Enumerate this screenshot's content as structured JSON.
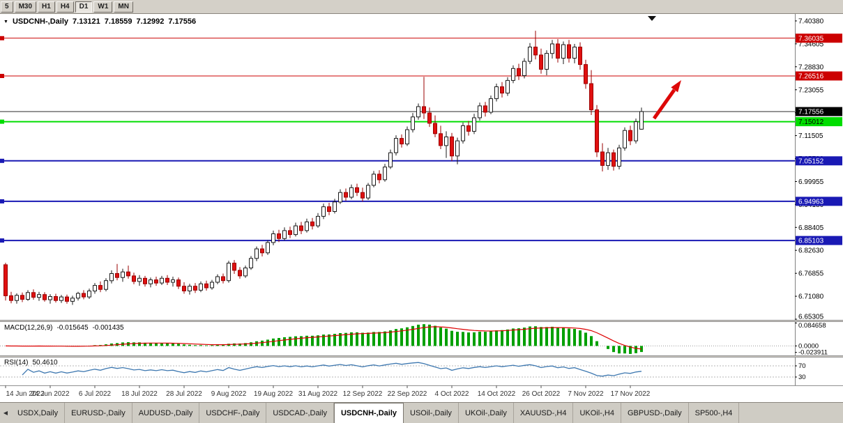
{
  "toolbar": {
    "timeframes": [
      {
        "label": "5",
        "active": false
      },
      {
        "label": "M30",
        "active": false
      },
      {
        "label": "H1",
        "active": false
      },
      {
        "label": "H4",
        "active": false
      },
      {
        "label": "D1",
        "active": true
      },
      {
        "label": "W1",
        "active": false
      },
      {
        "label": "MN",
        "active": false
      }
    ]
  },
  "chart": {
    "title": {
      "dropdown_icon": "▼",
      "symbol": "USDCNH-,Daily",
      "open": "7.13121",
      "high": "7.18559",
      "low": "7.12992",
      "close": "7.17556"
    },
    "levels": [
      {
        "price": 7.36035,
        "label": "7.36035",
        "color": "#cc0000",
        "text": "#ffffff",
        "width": 1
      },
      {
        "price": 7.26516,
        "label": "7.26516",
        "color": "#cc0000",
        "text": "#ffffff",
        "width": 1
      },
      {
        "price": 7.15012,
        "label": "7.15012",
        "color": "#00dd00",
        "text": "#000000",
        "width": 2
      },
      {
        "price": 7.05152,
        "label": "7.05152",
        "color": "#1919b4",
        "text": "#ffffff",
        "width": 2
      },
      {
        "price": 6.94963,
        "label": "6.94963",
        "color": "#1919b4",
        "text": "#ffffff",
        "width": 2
      },
      {
        "price": 6.85103,
        "label": "6.85103",
        "color": "#1919b4",
        "text": "#ffffff",
        "width": 2
      }
    ],
    "current_price": {
      "price": 7.17556,
      "label": "7.17556",
      "color": "#000000",
      "text": "#ffffff"
    },
    "arrow_color": "#dd0808",
    "bull_fill": "#ffffff",
    "bull_stroke": "#1a1a1a",
    "bear_fill": "#e01010",
    "bear_stroke": "#9a0000"
  },
  "chart_data": {
    "type": "candlestick",
    "title": "USDCNH-,Daily",
    "symbol": "USDCNH-",
    "timeframe": "Daily",
    "y_ticks": [
      "7.40380",
      "7.34605",
      "7.28830",
      "7.23055",
      "7.17280",
      "7.11505",
      "7.05730",
      "6.99955",
      "6.94180",
      "6.88405",
      "6.82630",
      "6.76855",
      "6.71080",
      "6.65305"
    ],
    "x_label_every": 8,
    "x_labels": [
      "14 Jun 2022",
      "24 Jun 2022",
      "6 Jul 2022",
      "18 Jul 2022",
      "28 Jul 2022",
      "9 Aug 2022",
      "19 Aug 2022",
      "31 Aug 2022",
      "12 Sep 2022",
      "22 Sep 2022",
      "4 Oct 2022",
      "14 Oct 2022",
      "26 Oct 2022",
      "7 Nov 2022",
      "17 Nov 2022"
    ],
    "ohlc": [
      [
        6.79,
        6.795,
        6.7,
        6.712
      ],
      [
        6.712,
        6.722,
        6.693,
        6.7
      ],
      [
        6.7,
        6.718,
        6.692,
        6.713
      ],
      [
        6.713,
        6.72,
        6.696,
        6.703
      ],
      [
        6.703,
        6.726,
        6.699,
        6.72
      ],
      [
        6.72,
        6.728,
        6.702,
        6.708
      ],
      [
        6.708,
        6.722,
        6.699,
        6.715
      ],
      [
        6.715,
        6.721,
        6.697,
        6.702
      ],
      [
        6.702,
        6.716,
        6.692,
        6.71
      ],
      [
        6.71,
        6.717,
        6.695,
        6.7
      ],
      [
        6.7,
        6.714,
        6.694,
        6.709
      ],
      [
        6.709,
        6.715,
        6.692,
        6.698
      ],
      [
        6.698,
        6.712,
        6.689,
        6.706
      ],
      [
        6.706,
        6.722,
        6.7,
        6.718
      ],
      [
        6.718,
        6.726,
        6.703,
        6.709
      ],
      [
        6.709,
        6.73,
        6.704,
        6.724
      ],
      [
        6.724,
        6.744,
        6.717,
        6.738
      ],
      [
        6.738,
        6.748,
        6.721,
        6.728
      ],
      [
        6.728,
        6.756,
        6.723,
        6.75
      ],
      [
        6.75,
        6.776,
        6.743,
        6.768
      ],
      [
        6.768,
        6.792,
        6.751,
        6.758
      ],
      [
        6.758,
        6.78,
        6.747,
        6.772
      ],
      [
        6.772,
        6.788,
        6.755,
        6.762
      ],
      [
        6.762,
        6.77,
        6.741,
        6.748
      ],
      [
        6.748,
        6.764,
        6.737,
        6.756
      ],
      [
        6.756,
        6.762,
        6.735,
        6.742
      ],
      [
        6.742,
        6.758,
        6.733,
        6.752
      ],
      [
        6.752,
        6.76,
        6.737,
        6.744
      ],
      [
        6.744,
        6.762,
        6.739,
        6.756
      ],
      [
        6.756,
        6.764,
        6.739,
        6.746
      ],
      [
        6.746,
        6.76,
        6.735,
        6.752
      ],
      [
        6.752,
        6.758,
        6.729,
        6.736
      ],
      [
        6.736,
        6.746,
        6.717,
        6.724
      ],
      [
        6.724,
        6.742,
        6.715,
        6.736
      ],
      [
        6.736,
        6.744,
        6.719,
        6.726
      ],
      [
        6.726,
        6.748,
        6.721,
        6.742
      ],
      [
        6.742,
        6.75,
        6.725,
        6.732
      ],
      [
        6.732,
        6.752,
        6.727,
        6.746
      ],
      [
        6.746,
        6.766,
        6.741,
        6.76
      ],
      [
        6.76,
        6.768,
        6.743,
        6.75
      ],
      [
        6.75,
        6.8,
        6.745,
        6.794
      ],
      [
        6.794,
        6.802,
        6.767,
        6.776
      ],
      [
        6.776,
        6.784,
        6.755,
        6.762
      ],
      [
        6.762,
        6.788,
        6.757,
        6.782
      ],
      [
        6.782,
        6.812,
        6.777,
        6.806
      ],
      [
        6.806,
        6.836,
        6.799,
        6.83
      ],
      [
        6.83,
        6.84,
        6.811,
        6.82
      ],
      [
        6.82,
        6.852,
        6.815,
        6.846
      ],
      [
        6.846,
        6.876,
        6.839,
        6.868
      ],
      [
        6.868,
        6.878,
        6.847,
        6.856
      ],
      [
        6.856,
        6.884,
        6.851,
        6.876
      ],
      [
        6.876,
        6.886,
        6.857,
        6.866
      ],
      [
        6.866,
        6.896,
        6.861,
        6.888
      ],
      [
        6.888,
        6.898,
        6.867,
        6.876
      ],
      [
        6.876,
        6.906,
        6.871,
        6.898
      ],
      [
        6.898,
        6.908,
        6.879,
        6.888
      ],
      [
        6.888,
        6.92,
        6.883,
        6.912
      ],
      [
        6.912,
        6.944,
        6.905,
        6.936
      ],
      [
        6.936,
        6.946,
        6.915,
        6.924
      ],
      [
        6.924,
        6.956,
        6.919,
        6.948
      ],
      [
        6.948,
        6.98,
        6.943,
        6.972
      ],
      [
        6.972,
        6.982,
        6.951,
        6.96
      ],
      [
        6.96,
        6.992,
        6.955,
        6.984
      ],
      [
        6.984,
        6.994,
        6.963,
        6.972
      ],
      [
        6.972,
        6.984,
        6.949,
        6.958
      ],
      [
        6.958,
        6.996,
        6.953,
        6.99
      ],
      [
        6.99,
        7.026,
        6.985,
        7.018
      ],
      [
        7.018,
        7.028,
        6.995,
        7.004
      ],
      [
        7.004,
        7.044,
        6.999,
        7.036
      ],
      [
        7.036,
        7.08,
        7.031,
        7.072
      ],
      [
        7.072,
        7.116,
        7.065,
        7.108
      ],
      [
        7.108,
        7.118,
        7.085,
        7.094
      ],
      [
        7.094,
        7.138,
        7.089,
        7.13
      ],
      [
        7.13,
        7.172,
        7.123,
        7.162
      ],
      [
        7.162,
        7.196,
        7.155,
        7.188
      ],
      [
        7.188,
        7.263,
        7.157,
        7.172
      ],
      [
        7.172,
        7.186,
        7.137,
        7.146
      ],
      [
        7.146,
        7.166,
        7.111,
        7.12
      ],
      [
        7.12,
        7.14,
        7.081,
        7.09
      ],
      [
        7.09,
        7.126,
        7.059,
        7.112
      ],
      [
        7.112,
        7.122,
        7.051,
        7.064
      ],
      [
        7.064,
        7.11,
        7.043,
        7.102
      ],
      [
        7.102,
        7.148,
        7.095,
        7.14
      ],
      [
        7.14,
        7.152,
        7.115,
        7.126
      ],
      [
        7.126,
        7.17,
        7.119,
        7.16
      ],
      [
        7.16,
        7.198,
        7.153,
        7.19
      ],
      [
        7.19,
        7.2,
        7.163,
        7.174
      ],
      [
        7.174,
        7.216,
        7.169,
        7.208
      ],
      [
        7.208,
        7.246,
        7.201,
        7.238
      ],
      [
        7.238,
        7.25,
        7.211,
        7.222
      ],
      [
        7.222,
        7.262,
        7.215,
        7.254
      ],
      [
        7.254,
        7.292,
        7.247,
        7.284
      ],
      [
        7.284,
        7.296,
        7.255,
        7.266
      ],
      [
        7.266,
        7.31,
        7.259,
        7.302
      ],
      [
        7.302,
        7.348,
        7.295,
        7.338
      ],
      [
        7.338,
        7.379,
        7.307,
        7.318
      ],
      [
        7.318,
        7.334,
        7.271,
        7.282
      ],
      [
        7.282,
        7.33,
        7.267,
        7.322
      ],
      [
        7.322,
        7.356,
        7.309,
        7.346
      ],
      [
        7.346,
        7.358,
        7.299,
        7.31
      ],
      [
        7.31,
        7.352,
        7.295,
        7.344
      ],
      [
        7.344,
        7.356,
        7.299,
        7.31
      ],
      [
        7.31,
        7.346,
        7.297,
        7.338
      ],
      [
        7.338,
        7.35,
        7.281,
        7.294
      ],
      [
        7.294,
        7.306,
        7.233,
        7.246
      ],
      [
        7.246,
        7.28,
        7.167,
        7.18
      ],
      [
        7.18,
        7.192,
        7.061,
        7.074
      ],
      [
        7.074,
        7.096,
        7.025,
        7.04
      ],
      [
        7.04,
        7.084,
        7.029,
        7.072
      ],
      [
        7.072,
        7.08,
        7.027,
        7.038
      ],
      [
        7.038,
        7.092,
        7.03,
        7.084
      ],
      [
        7.084,
        7.136,
        7.077,
        7.128
      ],
      [
        7.128,
        7.14,
        7.091,
        7.102
      ],
      [
        7.102,
        7.158,
        7.095,
        7.15
      ],
      [
        7.13121,
        7.18559,
        7.12992,
        7.17556
      ]
    ]
  },
  "macd": {
    "name": "MACD(12,26,9)",
    "value_main": "-0.015645",
    "value_signal": "-0.001435",
    "fast": 12,
    "slow": 26,
    "signal": 9,
    "axis": [
      "0.084658",
      "0.0000",
      "-0.023911"
    ],
    "histogram_color": "#00a000",
    "signal_color": "#dd0000"
  },
  "rsi": {
    "name": "RSI(14)",
    "value": "50.4610",
    "period": 14,
    "levels": [
      "70",
      "30"
    ],
    "line_color": "#3e78b0"
  },
  "tabs": {
    "scroll_left_icon": "◀",
    "items": [
      {
        "label": "USDX,Daily",
        "active": false
      },
      {
        "label": "EURUSD-,Daily",
        "active": false
      },
      {
        "label": "AUDUSD-,Daily",
        "active": false
      },
      {
        "label": "USDCHF-,Daily",
        "active": false
      },
      {
        "label": "USDCAD-,Daily",
        "active": false
      },
      {
        "label": "USDCNH-,Daily",
        "active": true
      },
      {
        "label": "USOil-,Daily",
        "active": false
      },
      {
        "label": "UKOil-,Daily",
        "active": false
      },
      {
        "label": "XAUUSD-,H4",
        "active": false
      },
      {
        "label": "UKOil-,H4",
        "active": false
      },
      {
        "label": "GBPUSD-,Daily",
        "active": false
      },
      {
        "label": "SP500-,H4",
        "active": false
      }
    ]
  }
}
